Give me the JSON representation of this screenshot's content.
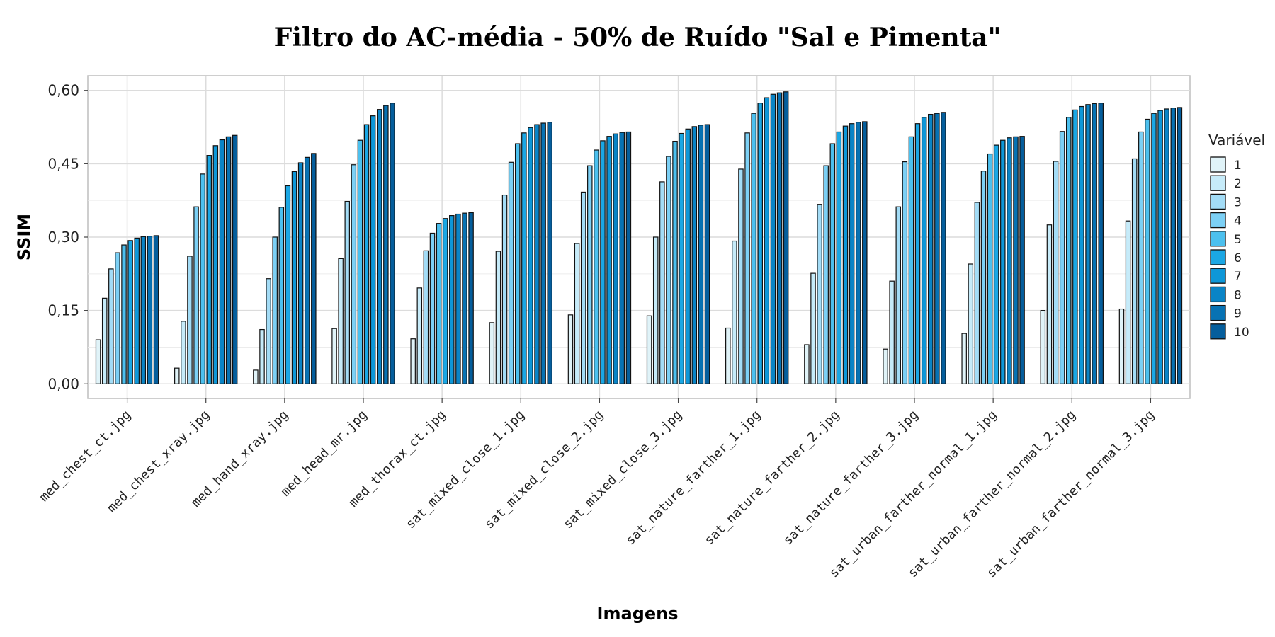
{
  "chart_data": {
    "type": "bar",
    "title": "Filtro do AC-média - 50% de Ruído \"Sal e Pimenta\"",
    "xlabel": "Imagens",
    "ylabel": "SSIM",
    "ylim": [
      -0.03,
      0.63
    ],
    "yticks": [
      0.0,
      0.15,
      0.3,
      0.45,
      0.6
    ],
    "ytick_labels": [
      "0,00",
      "0,15",
      "0,30",
      "0,45",
      "0,60"
    ],
    "grid": true,
    "legend_title": "Variável",
    "legend_position": "right",
    "categories": [
      "med_chest_ct.jpg",
      "med_chest_xray.jpg",
      "med_hand_xray.jpg",
      "med_head_mr.jpg",
      "med_thorax_ct.jpg",
      "sat_mixed_close_1.jpg",
      "sat_mixed_close_2.jpg",
      "sat_mixed_close_3.jpg",
      "sat_nature_farther_1.jpg",
      "sat_nature_farther_2.jpg",
      "sat_nature_farther_3.jpg",
      "sat_urban_farther_normal_1.jpg",
      "sat_urban_farther_normal_2.jpg",
      "sat_urban_farther_normal_3.jpg"
    ],
    "series": [
      {
        "name": "1",
        "color": "#e0f3f8",
        "values": [
          0.09,
          0.032,
          0.028,
          0.113,
          0.092,
          0.125,
          0.141,
          0.139,
          0.114,
          0.08,
          0.071,
          0.103,
          0.15,
          0.153
        ]
      },
      {
        "name": "2",
        "color": "#c6ebf9",
        "values": [
          0.175,
          0.128,
          0.111,
          0.256,
          0.196,
          0.271,
          0.287,
          0.3,
          0.292,
          0.226,
          0.21,
          0.245,
          0.325,
          0.333
        ]
      },
      {
        "name": "3",
        "color": "#a3dcf6",
        "values": [
          0.235,
          0.261,
          0.215,
          0.373,
          0.272,
          0.386,
          0.392,
          0.413,
          0.439,
          0.367,
          0.362,
          0.371,
          0.455,
          0.46
        ]
      },
      {
        "name": "4",
        "color": "#7cd0f5",
        "values": [
          0.268,
          0.362,
          0.3,
          0.448,
          0.308,
          0.453,
          0.446,
          0.465,
          0.513,
          0.446,
          0.454,
          0.435,
          0.516,
          0.515
        ]
      },
      {
        "name": "5",
        "color": "#4cc0ee",
        "values": [
          0.284,
          0.429,
          0.361,
          0.498,
          0.328,
          0.491,
          0.478,
          0.496,
          0.553,
          0.491,
          0.505,
          0.47,
          0.545,
          0.541
        ]
      },
      {
        "name": "6",
        "color": "#1ba7e4",
        "values": [
          0.293,
          0.467,
          0.405,
          0.53,
          0.338,
          0.513,
          0.497,
          0.512,
          0.574,
          0.515,
          0.532,
          0.488,
          0.56,
          0.553
        ]
      },
      {
        "name": "7",
        "color": "#0e97d8",
        "values": [
          0.298,
          0.487,
          0.434,
          0.548,
          0.344,
          0.524,
          0.506,
          0.521,
          0.585,
          0.527,
          0.545,
          0.498,
          0.567,
          0.559
        ]
      },
      {
        "name": "8",
        "color": "#0a84c6",
        "values": [
          0.301,
          0.499,
          0.452,
          0.561,
          0.347,
          0.53,
          0.511,
          0.526,
          0.592,
          0.532,
          0.551,
          0.503,
          0.571,
          0.562
        ]
      },
      {
        "name": "9",
        "color": "#0772b3",
        "values": [
          0.302,
          0.505,
          0.463,
          0.569,
          0.349,
          0.533,
          0.514,
          0.529,
          0.595,
          0.535,
          0.553,
          0.505,
          0.573,
          0.564
        ]
      },
      {
        "name": "10",
        "color": "#055e9c",
        "values": [
          0.303,
          0.508,
          0.471,
          0.574,
          0.35,
          0.535,
          0.515,
          0.53,
          0.597,
          0.536,
          0.555,
          0.506,
          0.574,
          0.565
        ]
      }
    ]
  }
}
